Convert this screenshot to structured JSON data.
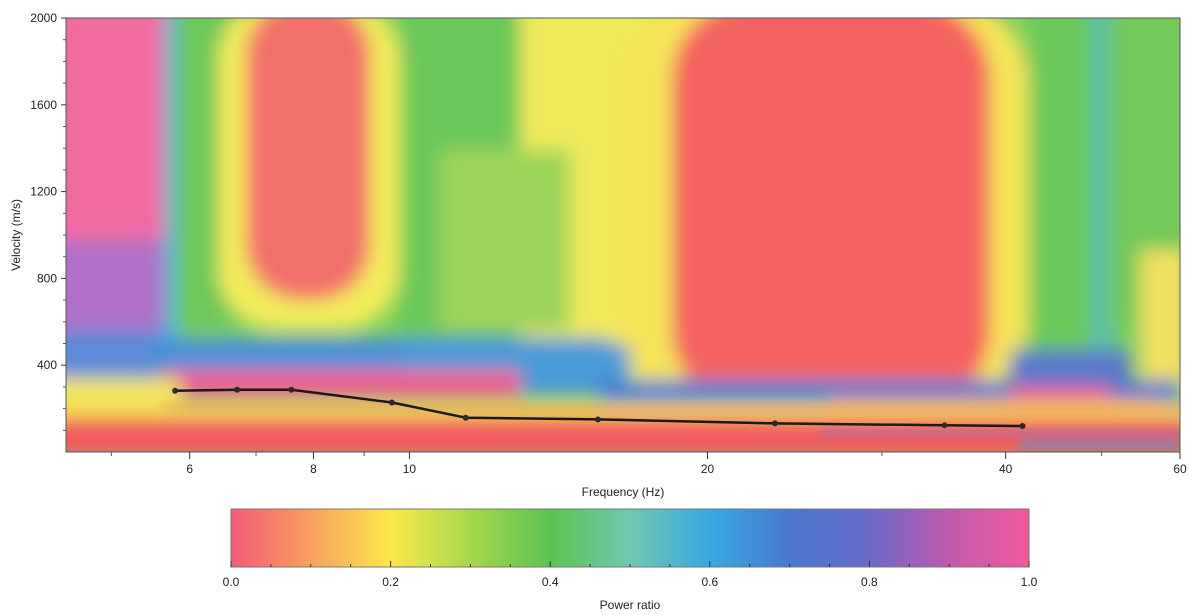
{
  "chart_data": [
    {
      "type": "heatmap",
      "title": "",
      "xlabel": "Frequency (Hz)",
      "ylabel": "Velocity (m/s)",
      "x_scale": "log",
      "xlim": [
        4.5,
        60
      ],
      "ylim": [
        0,
        2000
      ],
      "x_ticks": [
        6,
        8,
        10,
        20,
        40,
        60
      ],
      "y_ticks": [
        400,
        800,
        1200,
        1600,
        2000
      ],
      "colormap": [
        "#f25a78",
        "#fce84a",
        "#5cc250",
        "#38a8e0",
        "#6a6ac8",
        "#f05a9a"
      ],
      "series": [
        {
          "type": "line",
          "x": [
            5.8,
            6.7,
            7.6,
            9.6,
            11.4,
            15.5,
            23.4,
            34.7,
            41.6
          ],
          "y": [
            282,
            287,
            287,
            228,
            158,
            150,
            132,
            123,
            120
          ]
        }
      ]
    },
    {
      "type": "colorbar",
      "xlabel": "Power ratio",
      "xlim": [
        0.0,
        1.0
      ],
      "tick_labels": [
        "0.0",
        "0.2",
        "0.4",
        "0.6",
        "0.8",
        "1.0"
      ],
      "colors": [
        "#f25a78",
        "#fce84a",
        "#5cc250",
        "#38a8e0",
        "#6a6ac8",
        "#f05a9a"
      ]
    }
  ]
}
